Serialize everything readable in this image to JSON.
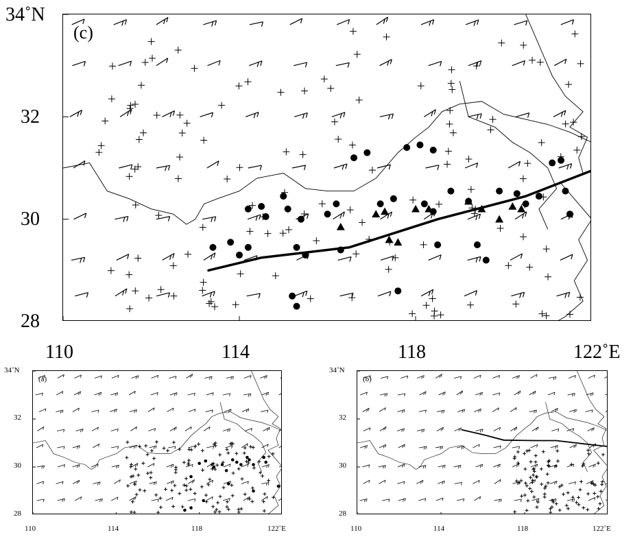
{
  "panels": [
    {
      "id": "c",
      "label": "(c)",
      "lat_ticks": [
        {
          "value": 34,
          "text": "34˚N"
        },
        {
          "value": 32,
          "text": "32"
        },
        {
          "value": 30,
          "text": "30"
        },
        {
          "value": 28,
          "text": "28"
        }
      ],
      "lon_ticks": [
        {
          "value": 110,
          "text": "110"
        },
        {
          "value": 114,
          "text": "114"
        },
        {
          "value": 118,
          "text": "118"
        },
        {
          "value": 122,
          "text": "122˚E"
        }
      ],
      "extent": {
        "lon": [
          110,
          122
        ],
        "lat": [
          28,
          34
        ]
      },
      "front_line": [
        [
          113.3,
          29.0
        ],
        [
          114.5,
          29.25
        ],
        [
          116.5,
          29.45
        ],
        [
          118.5,
          30.0
        ],
        [
          120.5,
          30.45
        ],
        [
          122.0,
          30.95
        ]
      ],
      "circles": [
        [
          113.4,
          29.45
        ],
        [
          113.8,
          29.55
        ],
        [
          114.2,
          29.45
        ],
        [
          114.0,
          29.3
        ],
        [
          114.2,
          30.2
        ],
        [
          114.5,
          30.25
        ],
        [
          114.6,
          30.05
        ],
        [
          115.0,
          30.45
        ],
        [
          115.1,
          30.2
        ],
        [
          115.4,
          30.0
        ],
        [
          115.3,
          29.45
        ],
        [
          115.5,
          29.3
        ],
        [
          115.2,
          28.5
        ],
        [
          115.3,
          28.3
        ],
        [
          116.0,
          30.1
        ],
        [
          116.2,
          30.3
        ],
        [
          116.3,
          29.4
        ],
        [
          116.6,
          31.2
        ],
        [
          116.9,
          31.3
        ],
        [
          117.2,
          30.3
        ],
        [
          117.5,
          30.4
        ],
        [
          117.8,
          31.4
        ],
        [
          118.1,
          31.45
        ],
        [
          118.4,
          31.35
        ],
        [
          118.2,
          30.3
        ],
        [
          118.4,
          30.15
        ],
        [
          118.8,
          30.55
        ],
        [
          119.2,
          30.35
        ],
        [
          119.4,
          29.5
        ],
        [
          119.6,
          29.2
        ],
        [
          119.9,
          30.55
        ],
        [
          120.3,
          30.5
        ],
        [
          120.5,
          30.3
        ],
        [
          120.8,
          30.45
        ],
        [
          121.1,
          31.1
        ],
        [
          121.3,
          31.15
        ],
        [
          121.4,
          30.55
        ],
        [
          121.5,
          30.1
        ],
        [
          117.6,
          28.6
        ],
        [
          118.5,
          29.5
        ]
      ],
      "triangles": [
        [
          116.3,
          29.85
        ],
        [
          117.1,
          30.1
        ],
        [
          117.3,
          30.15
        ],
        [
          117.6,
          29.55
        ],
        [
          117.4,
          29.6
        ],
        [
          118.0,
          30.2
        ],
        [
          118.3,
          30.2
        ],
        [
          119.2,
          30.35
        ],
        [
          119.5,
          30.2
        ],
        [
          119.9,
          30.0
        ],
        [
          120.2,
          30.25
        ],
        [
          120.4,
          30.2
        ]
      ],
      "crosses_count": 140,
      "barbs_rows": [
        33.8,
        33.0,
        32.0,
        31.0,
        30.0,
        29.2,
        28.5
      ]
    },
    {
      "id": "a",
      "label": "(a)",
      "lat_ticks": [
        {
          "value": 34,
          "text": "34˚N"
        },
        {
          "value": 32,
          "text": "32"
        },
        {
          "value": 30,
          "text": "30"
        },
        {
          "value": 28,
          "text": "28"
        }
      ],
      "lon_ticks": [
        {
          "value": 110,
          "text": "110"
        },
        {
          "value": 114,
          "text": "114"
        },
        {
          "value": 118,
          "text": "118"
        },
        {
          "value": 122,
          "text": "122˚E"
        }
      ],
      "extent": {
        "lon": [
          110,
          122
        ],
        "lat": [
          28,
          34
        ]
      },
      "front_line": [],
      "circles": [
        [
          118.0,
          30.15
        ],
        [
          118.3,
          30.25
        ],
        [
          118.7,
          30.0
        ],
        [
          119.1,
          30.1
        ],
        [
          119.3,
          29.85
        ],
        [
          119.6,
          30.3
        ],
        [
          119.8,
          30.2
        ],
        [
          120.0,
          30.1
        ],
        [
          120.3,
          30.4
        ],
        [
          120.4,
          30.3
        ],
        [
          120.6,
          30.1
        ],
        [
          121.1,
          30.4
        ],
        [
          121.2,
          30.2
        ],
        [
          117.6,
          29.6
        ],
        [
          119.4,
          29.3
        ],
        [
          120.6,
          29.0
        ],
        [
          118.2,
          28.6
        ],
        [
          117.6,
          28.3
        ],
        [
          117.3,
          28.2
        ],
        [
          121.8,
          29.2
        ]
      ],
      "triangles": [],
      "crosses_count": 120,
      "barbs_rows": [
        33.7,
        33.0,
        32.3,
        31.5,
        30.8,
        30.0,
        29.3,
        28.6
      ]
    },
    {
      "id": "b",
      "label": "(b)",
      "lat_ticks": [
        {
          "value": 34,
          "text": "34˚N"
        },
        {
          "value": 32,
          "text": "32"
        },
        {
          "value": 30,
          "text": "30"
        },
        {
          "value": 28,
          "text": "28"
        }
      ],
      "lon_ticks": [
        {
          "value": 110,
          "text": "110"
        },
        {
          "value": 114,
          "text": "114"
        },
        {
          "value": 118,
          "text": "118"
        },
        {
          "value": 122,
          "text": "122˚E"
        }
      ],
      "extent": {
        "lon": [
          110,
          122
        ],
        "lat": [
          28,
          34
        ]
      },
      "front_line": [
        [
          115.0,
          31.55
        ],
        [
          116.0,
          31.35
        ],
        [
          117.0,
          31.12
        ],
        [
          118.5,
          31.1
        ],
        [
          119.5,
          31.1
        ],
        [
          121.0,
          30.95
        ],
        [
          122.0,
          30.85
        ]
      ],
      "circles": [],
      "triangles": [],
      "crosses_count": 90,
      "barbs_rows": [
        33.7,
        33.0,
        32.3,
        31.5,
        30.8,
        30.0,
        29.3,
        28.6
      ]
    }
  ]
}
